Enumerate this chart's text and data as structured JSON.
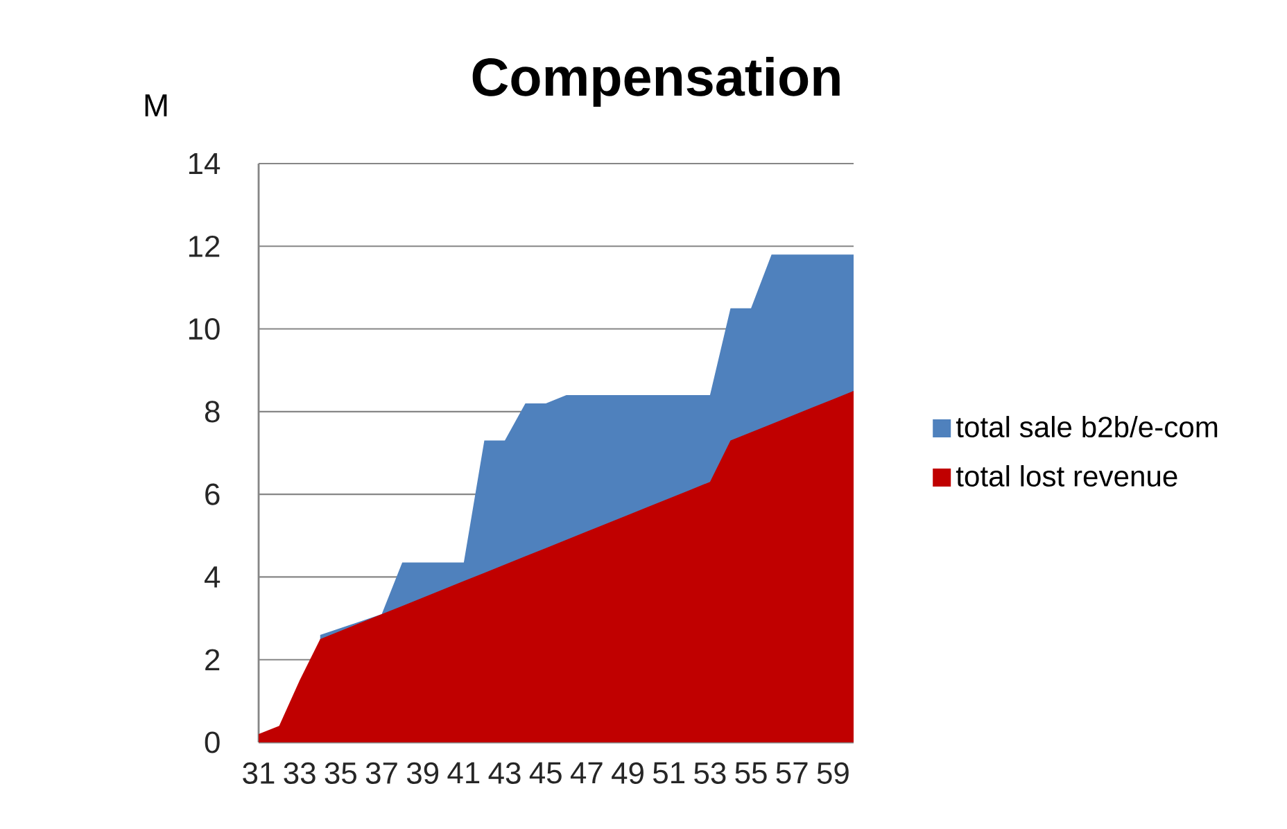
{
  "chart_data": {
    "type": "area",
    "title": "Compensation",
    "ylabel": "M",
    "categories": [
      "31",
      null,
      "33",
      null,
      "35",
      null,
      "37",
      null,
      "39",
      null,
      "41",
      null,
      "43",
      null,
      "45",
      null,
      "47",
      null,
      "49",
      null,
      "51",
      null,
      "53",
      null,
      "55",
      null,
      "57",
      null,
      "59",
      null
    ],
    "series": [
      {
        "name": "total sale b2b/e-com",
        "color": "#4f81bd",
        "values": [
          null,
          null,
          null,
          2.6,
          null,
          null,
          3.1,
          4.35,
          4.35,
          4.35,
          4.35,
          7.3,
          7.3,
          8.2,
          8.2,
          8.4,
          8.4,
          8.4,
          8.4,
          8.4,
          8.4,
          8.4,
          8.4,
          10.5,
          10.5,
          11.8,
          11.8,
          11.8,
          11.8,
          11.8
        ]
      },
      {
        "name": "total lost revenue",
        "color": "#c00000",
        "values": [
          0.2,
          0.4,
          1.5,
          2.5,
          2.7,
          2.9,
          3.1,
          3.3,
          3.5,
          3.7,
          3.9,
          4.1,
          4.3,
          4.5,
          4.7,
          4.9,
          5.1,
          5.3,
          5.5,
          5.7,
          5.9,
          6.1,
          6.3,
          7.3,
          7.5,
          7.7,
          7.9,
          8.1,
          8.3,
          8.5
        ]
      }
    ],
    "ylim": [
      0,
      14
    ],
    "yticks": [
      0,
      2,
      4,
      6,
      8,
      10,
      12,
      14
    ],
    "grid": "y",
    "legend": "right"
  }
}
